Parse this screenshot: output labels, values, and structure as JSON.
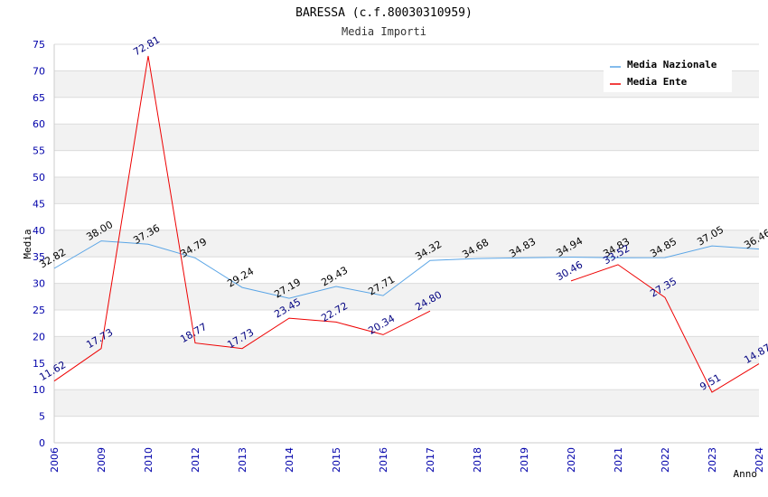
{
  "chart_data": {
    "type": "line",
    "title": "BARESSA (c.f.80030310959)",
    "subtitle": "Media Importi",
    "xlabel": "Anno",
    "ylabel": "Media",
    "ylim": [
      0,
      75
    ],
    "y_ticks": [
      "0",
      "5",
      "10",
      "15",
      "20",
      "25",
      "30",
      "35",
      "40",
      "45",
      "50",
      "55",
      "60",
      "65",
      "70",
      "75"
    ],
    "categories": [
      "2006",
      "2009",
      "2010",
      "2012",
      "2013",
      "2014",
      "2015",
      "2016",
      "2017",
      "2018",
      "2019",
      "2020",
      "2021",
      "2022",
      "2023",
      "2024"
    ],
    "grid": true,
    "legend_position": "top-right",
    "series": [
      {
        "name": "Media Nazionale",
        "color": "#5aa5e6",
        "values": [
          32.82,
          38.0,
          37.36,
          34.79,
          29.24,
          27.19,
          29.43,
          27.71,
          34.32,
          34.68,
          34.83,
          34.94,
          34.83,
          34.85,
          37.05,
          36.46
        ],
        "labels": [
          "32.82",
          "38.00",
          "37.36",
          "34.79",
          "29.24",
          "27.19",
          "29.43",
          "27.71",
          "34.32",
          "34.68",
          "34.83",
          "34.94",
          "34.83",
          "34.85",
          "37.05",
          "36.46"
        ]
      },
      {
        "name": "Media Ente",
        "color": "#ee0000",
        "values": [
          11.62,
          17.73,
          72.81,
          18.77,
          17.73,
          23.45,
          22.72,
          20.34,
          24.8,
          null,
          null,
          30.46,
          33.52,
          27.35,
          9.51,
          14.87
        ],
        "labels": [
          "11.62",
          "17.73",
          "72.81",
          "18.77",
          "17.73",
          "23.45",
          "22.72",
          "20.34",
          "24.80",
          null,
          null,
          "30.46",
          "33.52",
          "27.35",
          "9.51",
          "14.87"
        ]
      }
    ]
  }
}
